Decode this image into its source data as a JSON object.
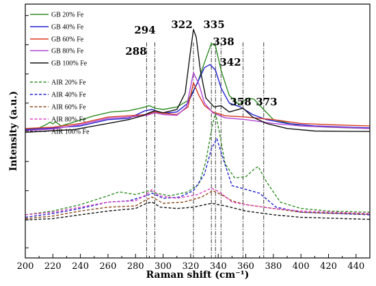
{
  "chart_data": {
    "type": "line",
    "xlabel": "Raman shift (cm⁻¹)",
    "ylabel": "Intensity (a.u.)",
    "xlim": [
      200,
      450
    ],
    "ylim": [
      0,
      10
    ],
    "x_ticks": [
      200,
      220,
      240,
      260,
      280,
      300,
      320,
      340,
      360,
      380,
      400,
      420,
      440
    ],
    "y_ticks": [],
    "grid": false,
    "legend_position": "top-left",
    "peak_markers": [
      {
        "x": 288,
        "label": "288"
      },
      {
        "x": 294,
        "label": "294"
      },
      {
        "x": 322,
        "label": "322"
      },
      {
        "x": 335,
        "label": "335"
      },
      {
        "x": 338,
        "label": "338"
      },
      {
        "x": 342,
        "label": "342"
      },
      {
        "x": 358,
        "label": "358"
      },
      {
        "x": 373,
        "label": "373"
      }
    ],
    "series": [
      {
        "name": "GB 20% Fe",
        "color": "#2e8b22",
        "dash": "solid",
        "points": [
          [
            200,
            5.05
          ],
          [
            210,
            5.12
          ],
          [
            215,
            5.25
          ],
          [
            218,
            5.35
          ],
          [
            220,
            5.28
          ],
          [
            222,
            5.36
          ],
          [
            226,
            5.2
          ],
          [
            235,
            5.35
          ],
          [
            250,
            5.6
          ],
          [
            262,
            5.75
          ],
          [
            275,
            5.8
          ],
          [
            285,
            5.92
          ],
          [
            290,
            6.0
          ],
          [
            294,
            5.9
          ],
          [
            300,
            5.85
          ],
          [
            310,
            5.95
          ],
          [
            318,
            6.2
          ],
          [
            325,
            6.9
          ],
          [
            330,
            7.7
          ],
          [
            335,
            8.45
          ],
          [
            338,
            8.35
          ],
          [
            342,
            7.4
          ],
          [
            348,
            6.4
          ],
          [
            355,
            6.05
          ],
          [
            362,
            6.3
          ],
          [
            366,
            6.25
          ],
          [
            372,
            5.9
          ],
          [
            380,
            5.45
          ],
          [
            400,
            5.2
          ],
          [
            420,
            5.15
          ],
          [
            450,
            5.1
          ]
        ]
      },
      {
        "name": "GB 40% Fe",
        "color": "#1f1fd0",
        "dash": "solid",
        "points": [
          [
            200,
            5.05
          ],
          [
            215,
            5.1
          ],
          [
            240,
            5.2
          ],
          [
            260,
            5.45
          ],
          [
            275,
            5.5
          ],
          [
            287,
            5.8
          ],
          [
            292,
            5.85
          ],
          [
            300,
            5.7
          ],
          [
            310,
            5.75
          ],
          [
            318,
            6.1
          ],
          [
            324,
            6.8
          ],
          [
            330,
            7.5
          ],
          [
            334,
            7.62
          ],
          [
            338,
            7.4
          ],
          [
            342,
            6.7
          ],
          [
            348,
            6.1
          ],
          [
            356,
            5.95
          ],
          [
            365,
            5.65
          ],
          [
            375,
            5.45
          ],
          [
            390,
            5.3
          ],
          [
            410,
            5.2
          ],
          [
            450,
            5.12
          ]
        ]
      },
      {
        "name": "GB 60% Fe",
        "color": "#d9381e",
        "dash": "solid",
        "points": [
          [
            200,
            5.1
          ],
          [
            220,
            5.15
          ],
          [
            240,
            5.3
          ],
          [
            260,
            5.55
          ],
          [
            275,
            5.6
          ],
          [
            288,
            5.65
          ],
          [
            294,
            5.75
          ],
          [
            300,
            5.7
          ],
          [
            310,
            5.65
          ],
          [
            318,
            5.95
          ],
          [
            322,
            6.9
          ],
          [
            326,
            6.4
          ],
          [
            330,
            6.0
          ],
          [
            336,
            5.75
          ],
          [
            345,
            5.6
          ],
          [
            360,
            5.55
          ],
          [
            380,
            5.45
          ],
          [
            400,
            5.3
          ],
          [
            420,
            5.25
          ],
          [
            450,
            5.2
          ]
        ]
      },
      {
        "name": "GB 80% Fe",
        "color": "#b044d4",
        "dash": "solid",
        "points": [
          [
            200,
            5.02
          ],
          [
            220,
            5.08
          ],
          [
            240,
            5.25
          ],
          [
            260,
            5.5
          ],
          [
            275,
            5.55
          ],
          [
            288,
            5.62
          ],
          [
            294,
            5.72
          ],
          [
            300,
            5.65
          ],
          [
            310,
            5.62
          ],
          [
            317,
            5.95
          ],
          [
            322,
            7.3
          ],
          [
            326,
            6.85
          ],
          [
            330,
            6.1
          ],
          [
            336,
            5.72
          ],
          [
            345,
            5.52
          ],
          [
            360,
            5.45
          ],
          [
            380,
            5.3
          ],
          [
            400,
            5.2
          ],
          [
            450,
            5.1
          ]
        ]
      },
      {
        "name": "GB 100% Fe",
        "color": "#111111",
        "dash": "solid",
        "points": [
          [
            200,
            4.95
          ],
          [
            215,
            5.0
          ],
          [
            235,
            5.05
          ],
          [
            260,
            5.3
          ],
          [
            275,
            5.45
          ],
          [
            285,
            5.6
          ],
          [
            290,
            5.72
          ],
          [
            294,
            5.8
          ],
          [
            300,
            5.72
          ],
          [
            310,
            5.85
          ],
          [
            316,
            6.5
          ],
          [
            320,
            8.2
          ],
          [
            322,
            9.0
          ],
          [
            324,
            8.7
          ],
          [
            327,
            7.4
          ],
          [
            331,
            6.3
          ],
          [
            337,
            5.95
          ],
          [
            342,
            6.0
          ],
          [
            348,
            5.75
          ],
          [
            358,
            5.9
          ],
          [
            365,
            5.55
          ],
          [
            375,
            5.3
          ],
          [
            390,
            5.1
          ],
          [
            410,
            5.0
          ],
          [
            450,
            4.98
          ]
        ]
      },
      {
        "name": "AIR 20% Fe",
        "color": "#2e8b22",
        "dash": "dashed",
        "points": [
          [
            200,
            1.7
          ],
          [
            220,
            1.85
          ],
          [
            240,
            2.1
          ],
          [
            260,
            2.45
          ],
          [
            268,
            2.6
          ],
          [
            280,
            2.5
          ],
          [
            290,
            2.65
          ],
          [
            295,
            2.55
          ],
          [
            305,
            2.45
          ],
          [
            318,
            2.6
          ],
          [
            326,
            2.9
          ],
          [
            331,
            3.8
          ],
          [
            336,
            5.3
          ],
          [
            338,
            5.7
          ],
          [
            341,
            4.9
          ],
          [
            345,
            3.7
          ],
          [
            352,
            3.15
          ],
          [
            360,
            3.2
          ],
          [
            366,
            3.5
          ],
          [
            369,
            3.6
          ],
          [
            375,
            3.0
          ],
          [
            385,
            2.2
          ],
          [
            400,
            1.95
          ],
          [
            420,
            1.85
          ],
          [
            450,
            1.8
          ]
        ]
      },
      {
        "name": "AIR 40% Fe",
        "color": "#1f1fd0",
        "dash": "dashed",
        "points": [
          [
            200,
            1.6
          ],
          [
            220,
            1.75
          ],
          [
            240,
            1.95
          ],
          [
            260,
            2.2
          ],
          [
            275,
            2.25
          ],
          [
            288,
            2.45
          ],
          [
            292,
            2.55
          ],
          [
            300,
            2.35
          ],
          [
            312,
            2.4
          ],
          [
            322,
            2.65
          ],
          [
            330,
            3.3
          ],
          [
            335,
            4.3
          ],
          [
            339,
            4.7
          ],
          [
            343,
            4.0
          ],
          [
            350,
            2.85
          ],
          [
            360,
            2.7
          ],
          [
            370,
            2.55
          ],
          [
            382,
            2.0
          ],
          [
            400,
            1.8
          ],
          [
            450,
            1.7
          ]
        ]
      },
      {
        "name": "AIR 60% Fe",
        "color": "#8b4513",
        "dash": "dashed",
        "points": [
          [
            200,
            1.55
          ],
          [
            220,
            1.65
          ],
          [
            240,
            1.85
          ],
          [
            260,
            2.0
          ],
          [
            280,
            2.05
          ],
          [
            288,
            2.3
          ],
          [
            292,
            2.4
          ],
          [
            300,
            2.15
          ],
          [
            315,
            2.2
          ],
          [
            328,
            2.4
          ],
          [
            336,
            2.65
          ],
          [
            342,
            2.5
          ],
          [
            350,
            2.25
          ],
          [
            360,
            2.1
          ],
          [
            380,
            1.95
          ],
          [
            400,
            1.8
          ],
          [
            450,
            1.72
          ]
        ]
      },
      {
        "name": "AIR 80% Fe",
        "color": "#e040c0",
        "dash": "dashed",
        "points": [
          [
            200,
            1.7
          ],
          [
            220,
            1.8
          ],
          [
            240,
            2.0
          ],
          [
            260,
            2.2
          ],
          [
            280,
            2.25
          ],
          [
            288,
            2.5
          ],
          [
            292,
            2.7
          ],
          [
            297,
            2.45
          ],
          [
            310,
            2.35
          ],
          [
            325,
            2.5
          ],
          [
            335,
            2.75
          ],
          [
            341,
            2.6
          ],
          [
            350,
            2.2
          ],
          [
            360,
            2.1
          ],
          [
            380,
            1.95
          ],
          [
            400,
            1.85
          ],
          [
            450,
            1.75
          ]
        ]
      },
      {
        "name": "AIR 100% Fe",
        "color": "#111111",
        "dash": "dashed",
        "points": [
          [
            200,
            1.5
          ],
          [
            220,
            1.55
          ],
          [
            240,
            1.7
          ],
          [
            260,
            1.85
          ],
          [
            280,
            1.95
          ],
          [
            288,
            2.15
          ],
          [
            292,
            2.2
          ],
          [
            298,
            2.0
          ],
          [
            310,
            1.95
          ],
          [
            322,
            2.0
          ],
          [
            335,
            2.15
          ],
          [
            345,
            2.05
          ],
          [
            360,
            1.85
          ],
          [
            380,
            1.7
          ],
          [
            400,
            1.6
          ],
          [
            450,
            1.52
          ]
        ]
      }
    ]
  }
}
